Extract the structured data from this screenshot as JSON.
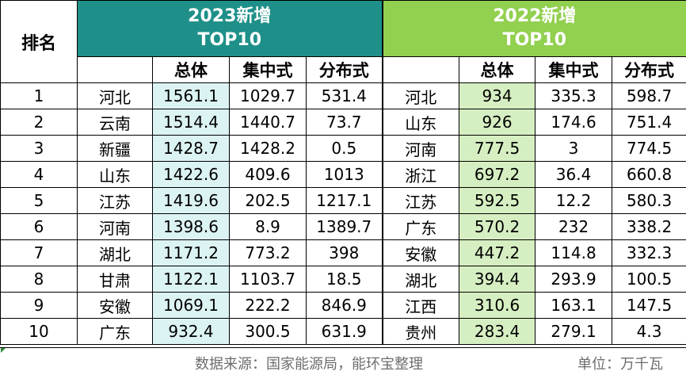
{
  "header": {
    "rank_label": "排名",
    "band_2023_line1": "2023新增",
    "band_2023_line2": "TOP10",
    "band_2022_line1": "2022新增",
    "band_2022_line2": "TOP10",
    "col_total": "总体",
    "col_centralized": "集中式",
    "col_distributed": "分布式"
  },
  "rows": [
    {
      "rank": "1",
      "p23": "河北",
      "t23": "1561.1",
      "c23": "1029.7",
      "d23": "531.4",
      "p22": "河北",
      "t22": "934",
      "c22": "335.3",
      "d22": "598.7"
    },
    {
      "rank": "2",
      "p23": "云南",
      "t23": "1514.4",
      "c23": "1440.7",
      "d23": "73.7",
      "p22": "山东",
      "t22": "926",
      "c22": "174.6",
      "d22": "751.4"
    },
    {
      "rank": "3",
      "p23": "新疆",
      "t23": "1428.7",
      "c23": "1428.2",
      "d23": "0.5",
      "p22": "河南",
      "t22": "777.5",
      "c22": "3",
      "d22": "774.5"
    },
    {
      "rank": "4",
      "p23": "山东",
      "t23": "1422.6",
      "c23": "409.6",
      "d23": "1013",
      "p22": "浙江",
      "t22": "697.2",
      "c22": "36.4",
      "d22": "660.8"
    },
    {
      "rank": "5",
      "p23": "江苏",
      "t23": "1419.6",
      "c23": "202.5",
      "d23": "1217.1",
      "p22": "江苏",
      "t22": "592.5",
      "c22": "12.2",
      "d22": "580.3"
    },
    {
      "rank": "6",
      "p23": "河南",
      "t23": "1398.6",
      "c23": "8.9",
      "d23": "1389.7",
      "p22": "广东",
      "t22": "570.2",
      "c22": "232",
      "d22": "338.2"
    },
    {
      "rank": "7",
      "p23": "湖北",
      "t23": "1171.2",
      "c23": "773.2",
      "d23": "398",
      "p22": "安徽",
      "t22": "447.2",
      "c22": "114.8",
      "d22": "332.3"
    },
    {
      "rank": "8",
      "p23": "甘肃",
      "t23": "1122.1",
      "c23": "1103.7",
      "d23": "18.5",
      "p22": "湖北",
      "t22": "394.4",
      "c22": "293.9",
      "d22": "100.5"
    },
    {
      "rank": "9",
      "p23": "安徽",
      "t23": "1069.1",
      "c23": "222.2",
      "d23": "846.9",
      "p22": "江西",
      "t22": "310.6",
      "c22": "163.1",
      "d22": "147.5"
    },
    {
      "rank": "10",
      "p23": "广东",
      "t23": "932.4",
      "c23": "300.5",
      "d23": "631.9",
      "p22": "贵州",
      "t22": "283.4",
      "c22": "279.1",
      "d22": "4.3"
    }
  ],
  "footer": {
    "source": "数据来源：国家能源局，能环宝整理",
    "unit": "单位：万千瓦"
  },
  "colors": {
    "band_2023": "#1e9089",
    "band_2022": "#92d050",
    "highlight_2023": "#dcf3f3",
    "highlight_2022": "#d6efc2"
  }
}
